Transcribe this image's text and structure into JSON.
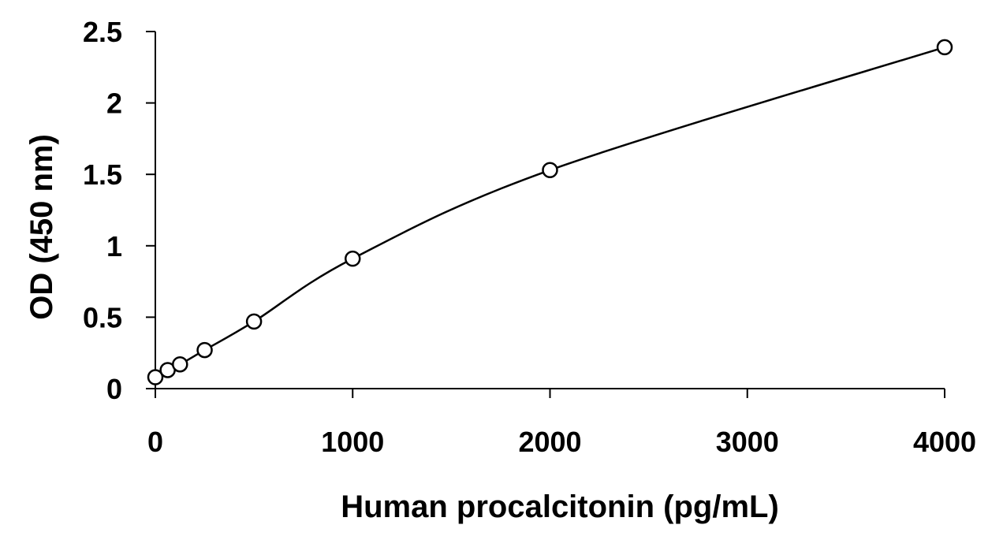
{
  "chart_data": {
    "type": "scatter",
    "title": "",
    "xlabel": "Human procalcitonin (pg/mL)",
    "ylabel": "OD (450 nm)",
    "xlim": [
      0,
      4000
    ],
    "ylim": [
      0,
      2.5
    ],
    "x_ticks": [
      "0",
      "1000",
      "2000",
      "3000",
      "4000"
    ],
    "y_ticks": [
      "0",
      "0.5",
      "1",
      "1.5",
      "2",
      "2.5"
    ],
    "grid": false,
    "legend": "none",
    "fit_line": "smooth curve through points",
    "series": [
      {
        "x": [
          0,
          62.5,
          125,
          250,
          500,
          1000,
          2000,
          4000
        ],
        "y": [
          0.08,
          0.13,
          0.17,
          0.27,
          0.47,
          0.91,
          1.53,
          2.39
        ]
      }
    ],
    "colors": {
      "marker_stroke": "#000000",
      "marker_fill": "#ffffff",
      "line": "#000000"
    }
  }
}
